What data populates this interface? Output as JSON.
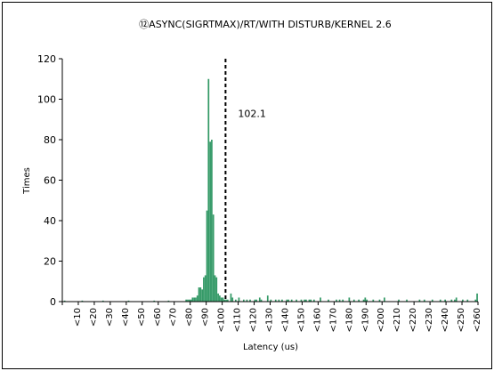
{
  "chart_data": {
    "type": "bar",
    "title": "⑫ASYNC(SIGRTMAX)/RT/WITH DISTURB/KERNEL 2.6",
    "xlabel": "Latency (us)",
    "ylabel": "Times",
    "ylim": [
      0,
      120
    ],
    "yticks": [
      0,
      20,
      40,
      60,
      80,
      100,
      120
    ],
    "x_tick_labels": [
      "<10",
      "<20",
      "<30",
      "<40",
      "<50",
      "<60",
      "<70",
      "<80",
      "<90",
      "<100",
      "<110",
      "<120",
      "<130",
      "<140",
      "<150",
      "<160",
      "<170",
      "<180",
      "<190",
      "<200",
      "<210",
      "<220",
      "<230",
      "<240",
      "<250",
      "<260"
    ],
    "xlim": [
      0,
      260
    ],
    "bar_width": 1,
    "bar_color": "#339966",
    "grid": false,
    "legend": "none",
    "bars": [
      {
        "x": 1,
        "y": 0.5
      },
      {
        "x": 12,
        "y": 0.5
      },
      {
        "x": 25,
        "y": 0.5
      },
      {
        "x": 41,
        "y": 0.5
      },
      {
        "x": 57,
        "y": 0.5
      },
      {
        "x": 66,
        "y": 0.5
      },
      {
        "x": 77,
        "y": 1
      },
      {
        "x": 78,
        "y": 1
      },
      {
        "x": 79,
        "y": 1
      },
      {
        "x": 80,
        "y": 1
      },
      {
        "x": 81,
        "y": 2
      },
      {
        "x": 82,
        "y": 2
      },
      {
        "x": 83,
        "y": 2
      },
      {
        "x": 84,
        "y": 3
      },
      {
        "x": 85,
        "y": 7
      },
      {
        "x": 86,
        "y": 7
      },
      {
        "x": 87,
        "y": 6
      },
      {
        "x": 88,
        "y": 12
      },
      {
        "x": 89,
        "y": 13
      },
      {
        "x": 90,
        "y": 45
      },
      {
        "x": 91,
        "y": 110
      },
      {
        "x": 92,
        "y": 79
      },
      {
        "x": 93,
        "y": 80
      },
      {
        "x": 94,
        "y": 43
      },
      {
        "x": 95,
        "y": 13
      },
      {
        "x": 96,
        "y": 12
      },
      {
        "x": 97,
        "y": 4
      },
      {
        "x": 98,
        "y": 3
      },
      {
        "x": 99,
        "y": 2
      },
      {
        "x": 100,
        "y": 2
      },
      {
        "x": 101,
        "y": 1
      },
      {
        "x": 102,
        "y": 1
      },
      {
        "x": 103,
        "y": 1
      },
      {
        "x": 105,
        "y": 4
      },
      {
        "x": 106,
        "y": 2
      },
      {
        "x": 108,
        "y": 1
      },
      {
        "x": 110,
        "y": 2
      },
      {
        "x": 113,
        "y": 1
      },
      {
        "x": 115,
        "y": 1
      },
      {
        "x": 117,
        "y": 1
      },
      {
        "x": 120,
        "y": 1
      },
      {
        "x": 121,
        "y": 1
      },
      {
        "x": 123,
        "y": 2
      },
      {
        "x": 124,
        "y": 1
      },
      {
        "x": 128,
        "y": 3
      },
      {
        "x": 130,
        "y": 1
      },
      {
        "x": 133,
        "y": 1
      },
      {
        "x": 135,
        "y": 1
      },
      {
        "x": 137,
        "y": 1
      },
      {
        "x": 140,
        "y": 1
      },
      {
        "x": 141,
        "y": 1
      },
      {
        "x": 143,
        "y": 1
      },
      {
        "x": 146,
        "y": 1
      },
      {
        "x": 149,
        "y": 1
      },
      {
        "x": 151,
        "y": 1
      },
      {
        "x": 152,
        "y": 1
      },
      {
        "x": 154,
        "y": 1
      },
      {
        "x": 155,
        "y": 1
      },
      {
        "x": 157,
        "y": 1
      },
      {
        "x": 161,
        "y": 2
      },
      {
        "x": 166,
        "y": 1
      },
      {
        "x": 171,
        "y": 1
      },
      {
        "x": 173,
        "y": 1
      },
      {
        "x": 175,
        "y": 1
      },
      {
        "x": 179,
        "y": 2
      },
      {
        "x": 182,
        "y": 1
      },
      {
        "x": 185,
        "y": 1
      },
      {
        "x": 188,
        "y": 1
      },
      {
        "x": 189,
        "y": 2
      },
      {
        "x": 190,
        "y": 1
      },
      {
        "x": 194,
        "y": 1
      },
      {
        "x": 198,
        "y": 1
      },
      {
        "x": 201,
        "y": 2
      },
      {
        "x": 210,
        "y": 1
      },
      {
        "x": 215,
        "y": 1
      },
      {
        "x": 223,
        "y": 1
      },
      {
        "x": 226,
        "y": 1
      },
      {
        "x": 231,
        "y": 1
      },
      {
        "x": 236,
        "y": 1
      },
      {
        "x": 239,
        "y": 1
      },
      {
        "x": 243,
        "y": 1
      },
      {
        "x": 245,
        "y": 1
      },
      {
        "x": 246,
        "y": 2
      },
      {
        "x": 250,
        "y": 1
      },
      {
        "x": 253,
        "y": 1
      },
      {
        "x": 258,
        "y": 1
      },
      {
        "x": 259,
        "y": 4
      }
    ],
    "annotations": [
      {
        "type": "vline",
        "x": 102.1,
        "style": "dashed",
        "label": "102.1"
      }
    ]
  }
}
